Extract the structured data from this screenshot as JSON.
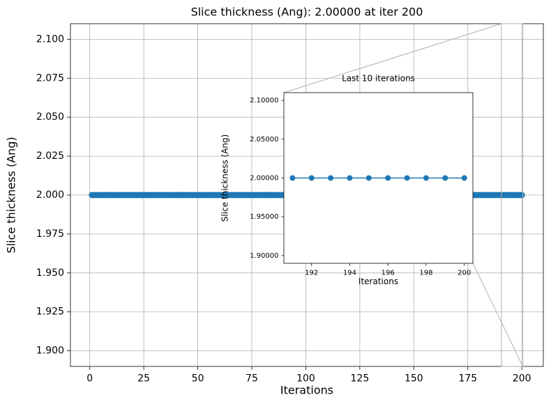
{
  "chart_data": [
    {
      "type": "line",
      "title": "Slice thickness (Ang): 2.00000 at iter 200",
      "x_label": "Iterations",
      "y_label": "Slice thickness (Ang)",
      "x": [
        1,
        2,
        3,
        4,
        5,
        6,
        7,
        8,
        9,
        10,
        11,
        12,
        13,
        14,
        15,
        16,
        17,
        18,
        19,
        20,
        21,
        22,
        23,
        24,
        25,
        26,
        27,
        28,
        29,
        30,
        31,
        32,
        33,
        34,
        35,
        36,
        37,
        38,
        39,
        40,
        41,
        42,
        43,
        44,
        45,
        46,
        47,
        48,
        49,
        50,
        51,
        52,
        53,
        54,
        55,
        56,
        57,
        58,
        59,
        60,
        61,
        62,
        63,
        64,
        65,
        66,
        67,
        68,
        69,
        70,
        71,
        72,
        73,
        74,
        75,
        76,
        77,
        78,
        79,
        80,
        81,
        82,
        83,
        84,
        85,
        86,
        87,
        88,
        89,
        90,
        91,
        92,
        93,
        94,
        95,
        96,
        97,
        98,
        99,
        100,
        101,
        102,
        103,
        104,
        105,
        106,
        107,
        108,
        109,
        110,
        111,
        112,
        113,
        114,
        115,
        116,
        117,
        118,
        119,
        120,
        121,
        122,
        123,
        124,
        125,
        126,
        127,
        128,
        129,
        130,
        131,
        132,
        133,
        134,
        135,
        136,
        137,
        138,
        139,
        140,
        141,
        142,
        143,
        144,
        145,
        146,
        147,
        148,
        149,
        150,
        151,
        152,
        153,
        154,
        155,
        156,
        157,
        158,
        159,
        160,
        161,
        162,
        163,
        164,
        165,
        166,
        167,
        168,
        169,
        170,
        171,
        172,
        173,
        174,
        175,
        176,
        177,
        178,
        179,
        180,
        181,
        182,
        183,
        184,
        185,
        186,
        187,
        188,
        189,
        190,
        191,
        192,
        193,
        194,
        195,
        196,
        197,
        198,
        199,
        200
      ],
      "series": [
        {
          "color": "#1f77b4",
          "values": [
            2,
            2,
            2,
            2,
            2,
            2,
            2,
            2,
            2,
            2,
            2,
            2,
            2,
            2,
            2,
            2,
            2,
            2,
            2,
            2,
            2,
            2,
            2,
            2,
            2,
            2,
            2,
            2,
            2,
            2,
            2,
            2,
            2,
            2,
            2,
            2,
            2,
            2,
            2,
            2,
            2,
            2,
            2,
            2,
            2,
            2,
            2,
            2,
            2,
            2,
            2,
            2,
            2,
            2,
            2,
            2,
            2,
            2,
            2,
            2,
            2,
            2,
            2,
            2,
            2,
            2,
            2,
            2,
            2,
            2,
            2,
            2,
            2,
            2,
            2,
            2,
            2,
            2,
            2,
            2,
            2,
            2,
            2,
            2,
            2,
            2,
            2,
            2,
            2,
            2,
            2,
            2,
            2,
            2,
            2,
            2,
            2,
            2,
            2,
            2,
            2,
            2,
            2,
            2,
            2,
            2,
            2,
            2,
            2,
            2,
            2,
            2,
            2,
            2,
            2,
            2,
            2,
            2,
            2,
            2,
            2,
            2,
            2,
            2,
            2,
            2,
            2,
            2,
            2,
            2,
            2,
            2,
            2,
            2,
            2,
            2,
            2,
            2,
            2,
            2,
            2,
            2,
            2,
            2,
            2,
            2,
            2,
            2,
            2,
            2,
            2,
            2,
            2,
            2,
            2,
            2,
            2,
            2,
            2,
            2,
            2,
            2,
            2,
            2,
            2,
            2,
            2,
            2,
            2,
            2,
            2,
            2,
            2,
            2,
            2,
            2,
            2,
            2,
            2,
            2,
            2,
            2,
            2,
            2,
            2,
            2,
            2,
            2,
            2,
            2,
            2,
            2,
            2,
            2,
            2,
            2,
            2,
            2,
            2,
            2
          ]
        }
      ],
      "xlim": [
        -8.95,
        209.95
      ],
      "ylim": [
        1.89,
        2.11
      ],
      "xticks": [
        0,
        25,
        50,
        75,
        100,
        125,
        150,
        175,
        200
      ],
      "yticks": [
        {
          "value": 1.9,
          "label": "1.900"
        },
        {
          "value": 1.925,
          "label": "1.925"
        },
        {
          "value": 1.95,
          "label": "1.950"
        },
        {
          "value": 1.975,
          "label": "1.975"
        },
        {
          "value": 2.0,
          "label": "2.000"
        },
        {
          "value": 2.025,
          "label": "2.025"
        },
        {
          "value": 2.05,
          "label": "2.050"
        },
        {
          "value": 2.075,
          "label": "2.075"
        },
        {
          "value": 2.1,
          "label": "2.100"
        }
      ],
      "grid": true
    },
    {
      "type": "line",
      "title": "Last 10 iterations",
      "x_label": "Iterations",
      "y_label": "Slice thickness (Ang)",
      "x": [
        191,
        192,
        193,
        194,
        195,
        196,
        197,
        198,
        199,
        200
      ],
      "series": [
        {
          "color": "#1f77b4",
          "values": [
            2,
            2,
            2,
            2,
            2,
            2,
            2,
            2,
            2,
            2
          ]
        }
      ],
      "xlim": [
        190.55,
        200.45
      ],
      "ylim": [
        1.89,
        2.11
      ],
      "xticks": [
        192,
        194,
        196,
        198,
        200
      ],
      "yticks": [
        {
          "value": 1.9,
          "label": "1.90000"
        },
        {
          "value": 1.95,
          "label": "1.95000"
        },
        {
          "value": 2.0,
          "label": "2.00000"
        },
        {
          "value": 2.05,
          "label": "2.05000"
        },
        {
          "value": 2.1,
          "label": "2.10000"
        }
      ],
      "grid": false
    }
  ]
}
